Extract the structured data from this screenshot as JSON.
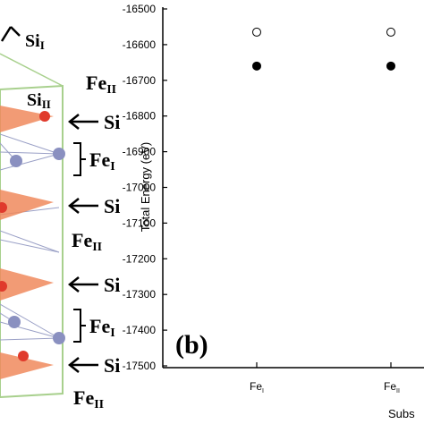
{
  "structure_labels": {
    "si_i": "Si",
    "si_i_sub": "I",
    "fe_ii_top": "Fe",
    "fe_ii_top_sub": "II",
    "si_ii": "Si",
    "si_ii_sub": "II",
    "si_1": "Si",
    "fe_i_1": "Fe",
    "fe_i_1_sub": "I",
    "si_2": "Si",
    "fe_ii_mid": "Fe",
    "fe_ii_mid_sub": "II",
    "si_3": "Si",
    "fe_i_2": "Fe",
    "fe_i_2_sub": "I",
    "si_4": "Si",
    "fe_ii_bottom": "Fe",
    "fe_ii_bottom_sub": "II"
  },
  "chart_data": {
    "type": "scatter",
    "panel_label": "(b)",
    "ylabel": "Total Energy (eV)",
    "xlabel": "Subs",
    "ylim": [
      -17500,
      -16500
    ],
    "yticks": [
      -16500,
      -16600,
      -16700,
      -16800,
      -16900,
      -17000,
      -17100,
      -17200,
      -17300,
      -17400,
      -17500
    ],
    "categories": [
      {
        "main": "Fe",
        "sub": "I"
      },
      {
        "main": "Fe",
        "sub": "II"
      }
    ],
    "series": [
      {
        "marker": "open-circle",
        "values": [
          -16565,
          -16565
        ]
      },
      {
        "marker": "filled-circle",
        "values": [
          -16660,
          -16660
        ]
      }
    ]
  }
}
